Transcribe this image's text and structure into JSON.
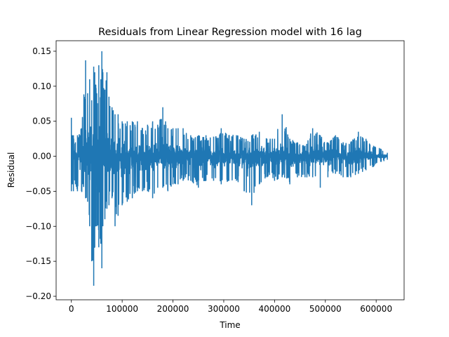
{
  "chart_data": {
    "type": "line",
    "title": "Residuals from Linear Regression model with 16 lag",
    "xlabel": "Time",
    "ylabel": "Residual",
    "xlim": [
      -30000,
      655000
    ],
    "ylim": [
      -0.205,
      0.165
    ],
    "xticks": [
      0,
      100000,
      200000,
      300000,
      400000,
      500000,
      600000
    ],
    "xtick_labels": [
      "0",
      "100000",
      "200000",
      "300000",
      "400000",
      "500000",
      "600000"
    ],
    "yticks": [
      -0.2,
      -0.15,
      -0.1,
      -0.05,
      0.0,
      0.05,
      0.1,
      0.15
    ],
    "ytick_labels": [
      "−0.20",
      "−0.15",
      "−0.10",
      "−0.05",
      "0.00",
      "0.05",
      "0.10",
      "0.15"
    ],
    "grid": false,
    "legend": "none",
    "line_color": "#1f77b4",
    "series": [
      {
        "x": [
          0,
          2000,
          4000,
          8000,
          12000,
          20000,
          28000,
          32000,
          36000,
          40000,
          44000,
          46000,
          50000,
          54000,
          58000,
          60000,
          62000,
          66000,
          70000,
          74000,
          80000,
          86000,
          92000,
          100000,
          110000,
          120000,
          130000,
          140000,
          150000,
          160000,
          170000,
          180000,
          190000,
          200000,
          210000,
          220000,
          235000,
          250000,
          265000,
          280000,
          295000,
          310000,
          325000,
          340000,
          355000,
          370000,
          385000,
          400000,
          415000,
          430000,
          445000,
          460000,
          475000,
          490000,
          505000,
          520000,
          535000,
          550000,
          565000,
          580000,
          595000,
          610000,
          622000
        ],
        "envelope_upper": [
          0.055,
          0.03,
          0.03,
          0.02,
          0.03,
          0.04,
          0.137,
          0.09,
          0.11,
          0.08,
          0.128,
          0.12,
          0.09,
          0.13,
          0.11,
          0.15,
          0.12,
          0.095,
          0.12,
          0.085,
          0.07,
          0.06,
          0.06,
          0.05,
          0.05,
          0.05,
          0.05,
          0.04,
          0.045,
          0.05,
          0.045,
          0.07,
          0.04,
          0.04,
          0.04,
          0.04,
          0.03,
          0.03,
          0.03,
          0.028,
          0.04,
          0.03,
          0.03,
          0.025,
          0.03,
          0.035,
          0.025,
          0.025,
          0.06,
          0.025,
          0.02,
          0.015,
          0.04,
          0.03,
          0.02,
          0.03,
          0.02,
          0.02,
          0.035,
          0.025,
          0.015,
          0.01,
          0.005
        ],
        "envelope_lower": [
          -0.05,
          -0.04,
          -0.05,
          -0.04,
          -0.05,
          -0.05,
          -0.06,
          -0.065,
          -0.1,
          -0.15,
          -0.185,
          -0.13,
          -0.1,
          -0.13,
          -0.125,
          -0.16,
          -0.1,
          -0.09,
          -0.075,
          -0.07,
          -0.06,
          -0.1,
          -0.085,
          -0.07,
          -0.065,
          -0.06,
          -0.05,
          -0.05,
          -0.05,
          -0.06,
          -0.045,
          -0.045,
          -0.05,
          -0.04,
          -0.04,
          -0.035,
          -0.035,
          -0.045,
          -0.035,
          -0.035,
          -0.04,
          -0.035,
          -0.035,
          -0.05,
          -0.07,
          -0.04,
          -0.03,
          -0.035,
          -0.03,
          -0.04,
          -0.03,
          -0.03,
          -0.03,
          -0.045,
          -0.03,
          -0.025,
          -0.03,
          -0.03,
          -0.025,
          -0.02,
          -0.015,
          -0.008,
          -0.005
        ]
      }
    ]
  }
}
